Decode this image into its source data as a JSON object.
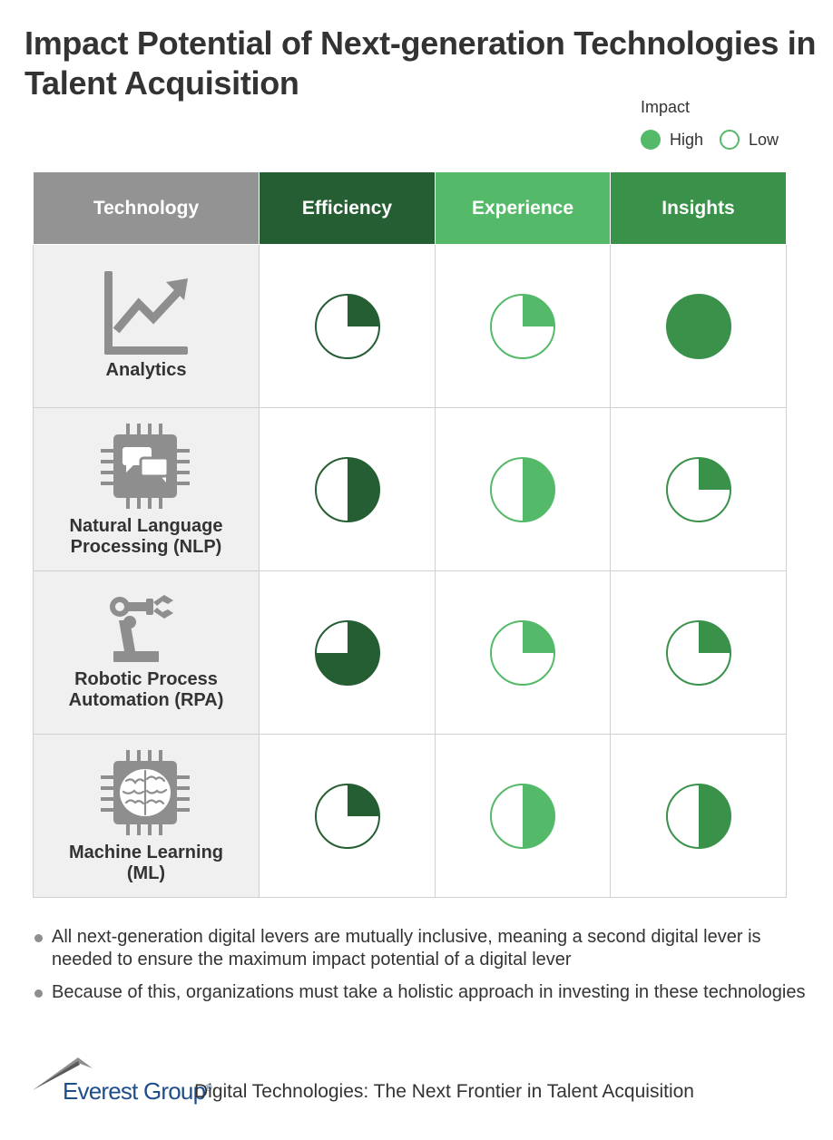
{
  "title": "Impact Potential of Next-generation Technologies in Talent Acquisition",
  "legend": {
    "title": "Impact",
    "high_label": "High",
    "low_label": "Low",
    "high_color": "#55b96a"
  },
  "header": {
    "technology": "Technology",
    "columns": [
      {
        "label": "Efficiency",
        "color": "#265e33"
      },
      {
        "label": "Experience",
        "color": "#55b96a"
      },
      {
        "label": "Insights",
        "color": "#3a9149"
      }
    ]
  },
  "rows": [
    {
      "name": "Analytics",
      "icon": "line-chart-icon",
      "levels": [
        0.25,
        0.25,
        1.0
      ]
    },
    {
      "name": "Natural Language\nProcessing (NLP)",
      "icon": "chat-chip-icon",
      "levels": [
        0.5,
        0.5,
        0.25
      ]
    },
    {
      "name": "Robotic Process\nAutomation (RPA)",
      "icon": "robot-arm-icon",
      "levels": [
        0.75,
        0.25,
        0.25
      ]
    },
    {
      "name": "Machine Learning\n(ML)",
      "icon": "brain-chip-icon",
      "levels": [
        0.25,
        0.5,
        0.5
      ]
    }
  ],
  "notes": [
    "All next-generation digital levers are mutually inclusive, meaning a second digital lever is needed to ensure the maximum impact potential of a digital lever",
    "Because of this, organizations must take a holistic approach in investing in these technologies"
  ],
  "footer": {
    "brand": "Everest Group",
    "reg": "®",
    "subtitle": "Digital Technologies: The Next Frontier in Talent Acquisition"
  }
}
